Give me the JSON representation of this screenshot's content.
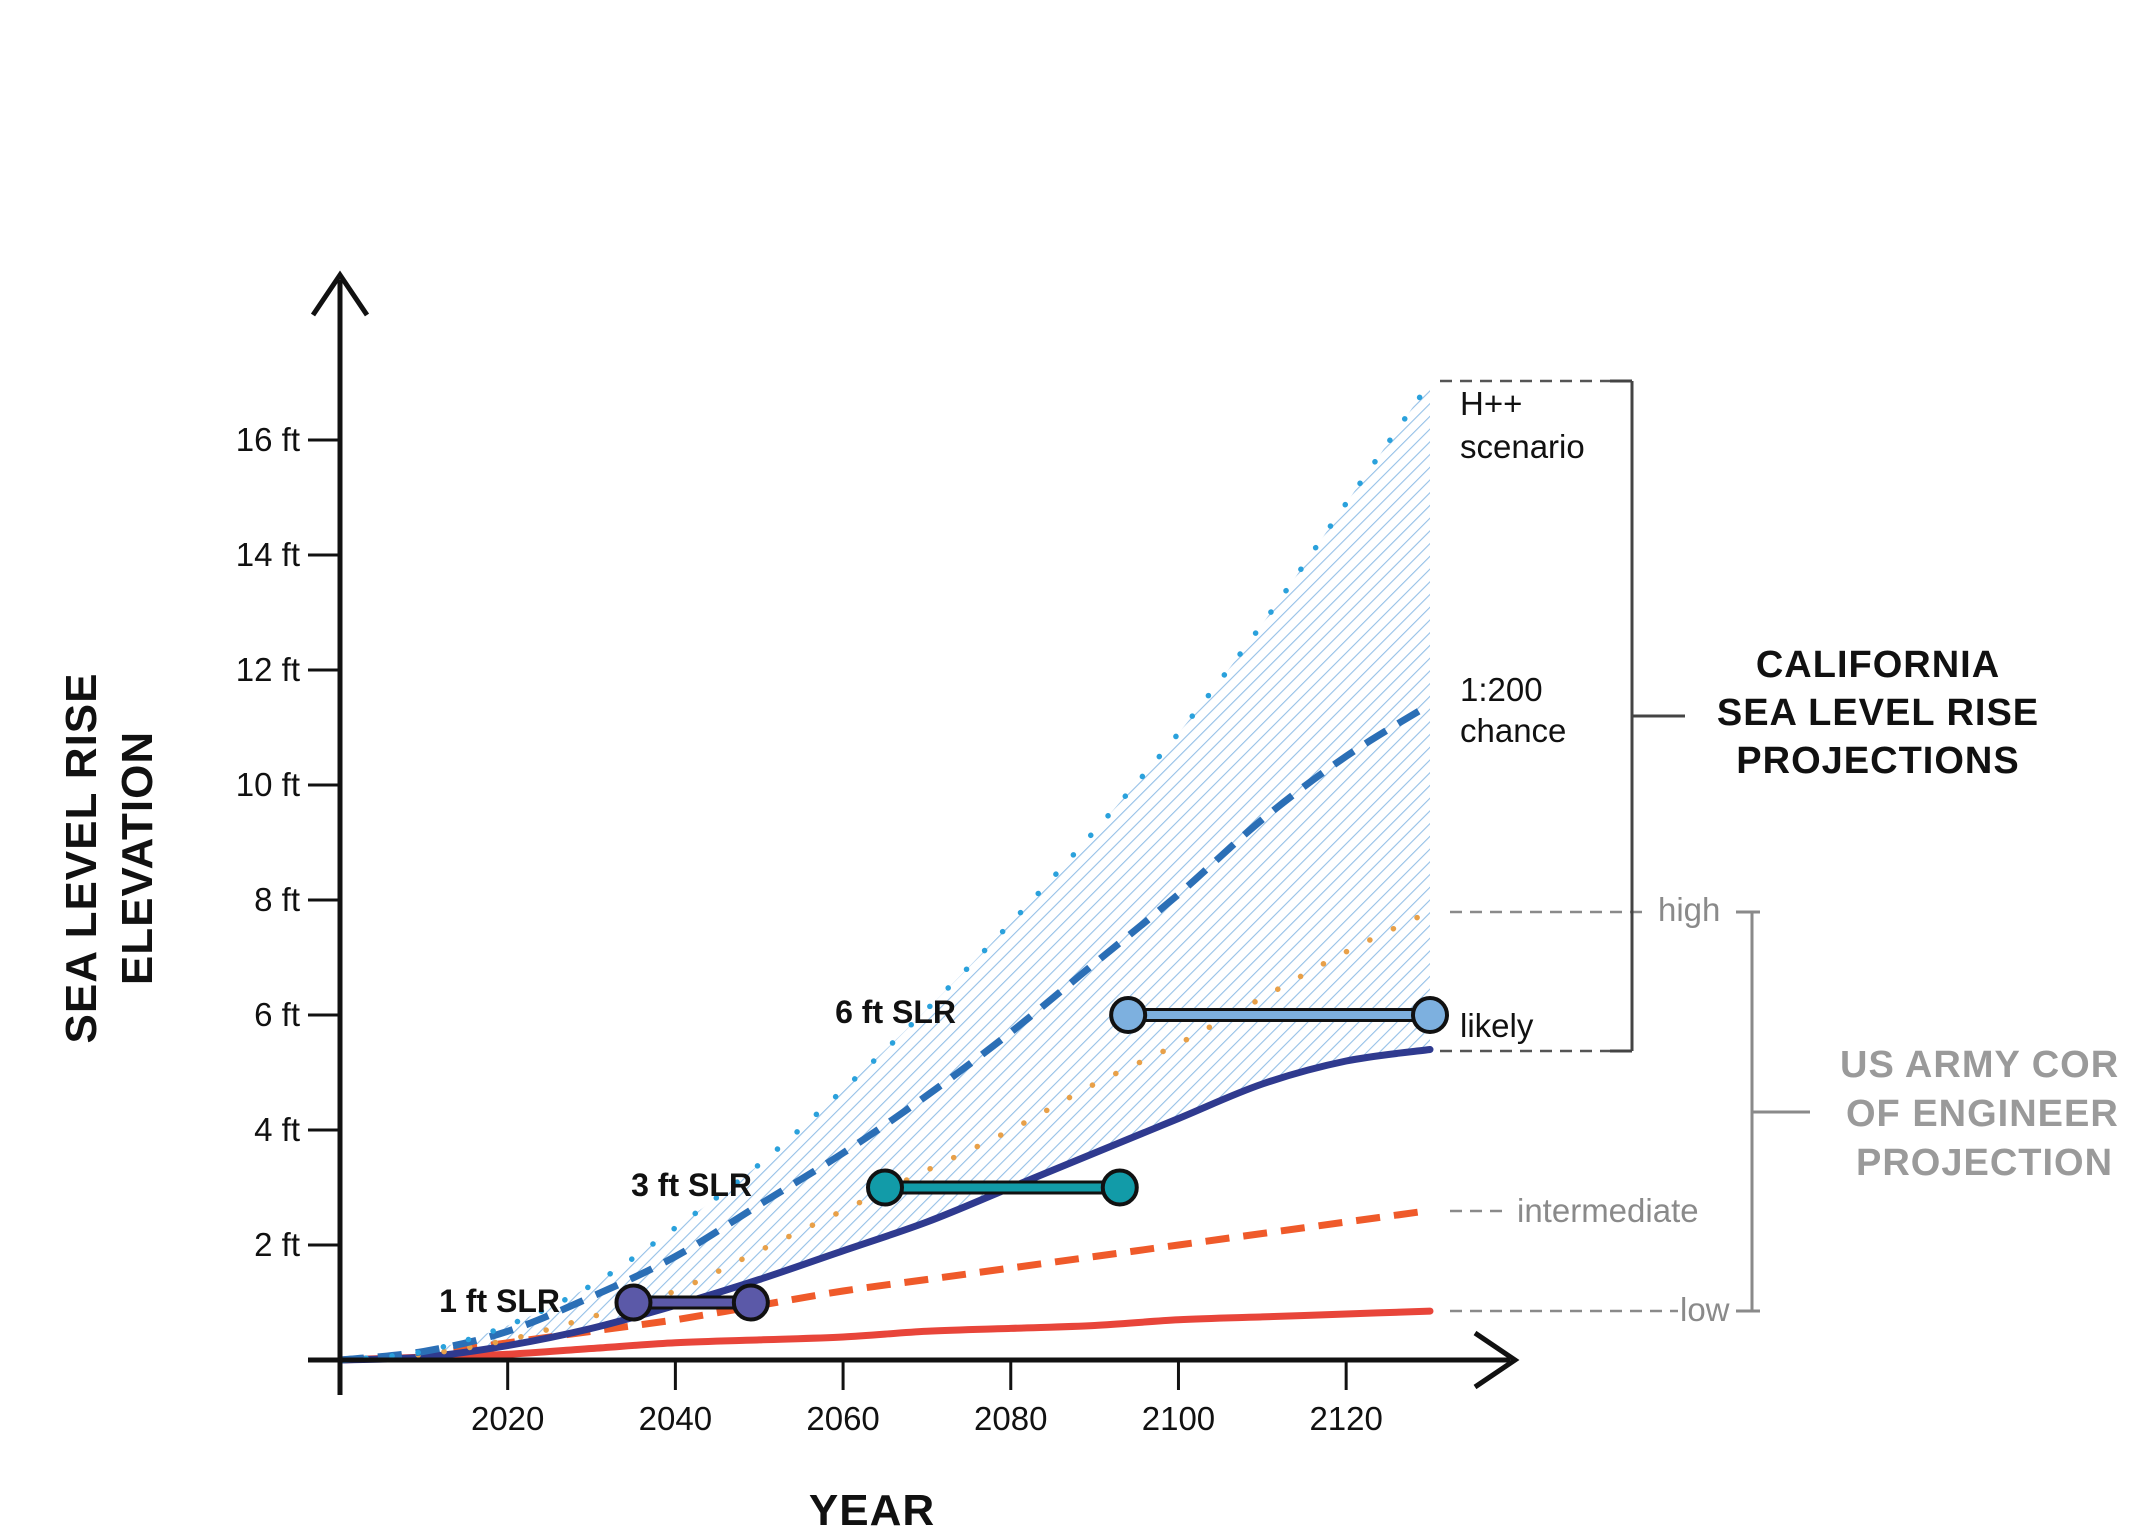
{
  "chart_data": {
    "type": "line",
    "title": "",
    "xlabel": "YEAR",
    "ylabel": [
      "SEA LEVEL RISE",
      "ELEVATION"
    ],
    "xlim": [
      2000,
      2141
    ],
    "ylim": [
      0,
      18
    ],
    "x_ticks": [
      2020,
      2040,
      2060,
      2080,
      2100,
      2120
    ],
    "x_tick_labels": [
      "2020",
      "2040",
      "2060",
      "2080",
      "2100",
      "2120"
    ],
    "y_ticks": [
      2,
      4,
      6,
      8,
      10,
      12,
      14,
      16
    ],
    "y_tick_labels": [
      "2 ft",
      "4 ft",
      "6 ft",
      "8 ft",
      "10 ft",
      "12 ft",
      "14 ft",
      "16 ft"
    ],
    "x": [
      2000,
      2010,
      2020,
      2030,
      2040,
      2050,
      2060,
      2070,
      2080,
      2090,
      2100,
      2110,
      2120,
      2130
    ],
    "series": [
      {
        "name": "H++ scenario",
        "style": "dotted",
        "color": "#2aa1dc",
        "values": [
          0,
          0.15,
          0.6,
          1.3,
          2.3,
          3.4,
          4.7,
          6.1,
          7.6,
          9.2,
          10.9,
          12.8,
          14.9,
          17.0
        ]
      },
      {
        "name": "1:200 chance",
        "style": "dashed",
        "color": "#2b6fb6",
        "values": [
          0,
          0.15,
          0.5,
          1.1,
          1.8,
          2.7,
          3.6,
          4.6,
          5.7,
          6.9,
          8.1,
          9.4,
          10.5,
          11.4
        ]
      },
      {
        "name": "",
        "style": "dotted",
        "color": "#e8a048",
        "values": [
          0,
          0.1,
          0.35,
          0.75,
          1.2,
          1.9,
          2.6,
          3.3,
          4.0,
          4.8,
          5.5,
          6.3,
          7.1,
          7.8
        ]
      },
      {
        "name": "likely",
        "style": "solid",
        "color": "#2f3a8f",
        "values": [
          0,
          0.05,
          0.25,
          0.55,
          0.95,
          1.4,
          1.9,
          2.4,
          3.0,
          3.6,
          4.2,
          4.8,
          5.2,
          5.4
        ]
      },
      {
        "name": "intermediate",
        "style": "dashed",
        "color": "#ef5a2a",
        "values": [
          0,
          0.1,
          0.3,
          0.5,
          0.7,
          0.95,
          1.2,
          1.4,
          1.6,
          1.8,
          2.0,
          2.2,
          2.4,
          2.6
        ]
      },
      {
        "name": "low",
        "style": "solid",
        "color": "#e8453a",
        "values": [
          0,
          0.05,
          0.1,
          0.2,
          0.3,
          0.35,
          0.4,
          0.5,
          0.55,
          0.6,
          0.7,
          0.75,
          0.8,
          0.85
        ]
      }
    ],
    "slr_markers": [
      {
        "label": "1 ft SLR",
        "value": 1,
        "x_start": 2035,
        "x_end": 2049,
        "color": "#5b59a8"
      },
      {
        "label": "3 ft SLR",
        "value": 3,
        "x_start": 2065,
        "x_end": 2093,
        "color": "#129ba8"
      },
      {
        "label": "6 ft SLR",
        "value": 6,
        "x_start": 2094,
        "x_end": 2130,
        "color": "#7db0df"
      }
    ],
    "end_labels": {
      "hpp": [
        "H++",
        "scenario"
      ],
      "chance": [
        "1:200",
        "chance"
      ],
      "likely": "likely",
      "high": "high",
      "intermediate": "intermediate",
      "low": "low"
    },
    "groups": {
      "california": [
        "CALIFORNIA",
        "SEA LEVEL RISE",
        "PROJECTIONS"
      ],
      "army": [
        "US ARMY COR",
        "OF ENGINEER",
        "PROJECTION"
      ]
    },
    "grid": false,
    "legend": "none"
  }
}
